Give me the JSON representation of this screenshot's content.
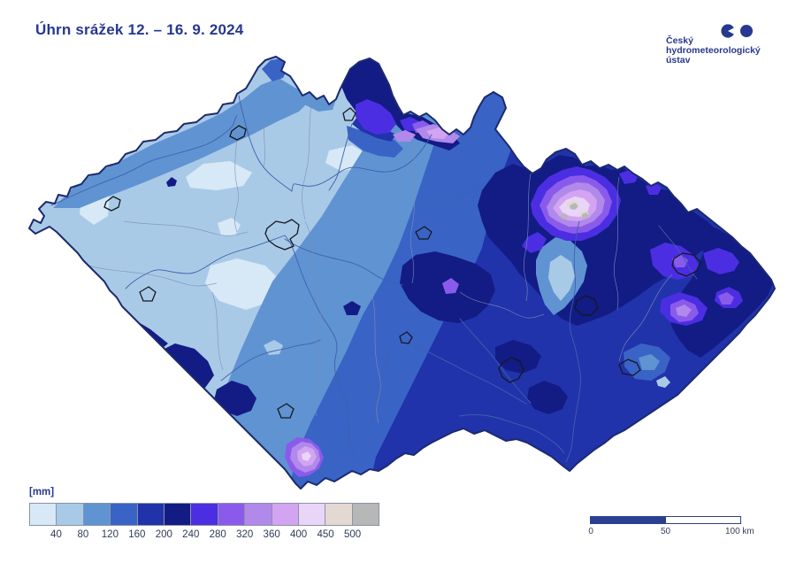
{
  "title": "Úhrn srážek 12. – 16. 9. 2024",
  "logo": {
    "name_line1": "Český",
    "name_line2": "hydrometeorologický",
    "name_line3": "ústav"
  },
  "legend": {
    "unit_label": "[mm]",
    "ticks": [
      "40",
      "80",
      "120",
      "160",
      "200",
      "240",
      "280",
      "320",
      "360",
      "400",
      "450",
      "500"
    ]
  },
  "scalebar": {
    "start_label": "0",
    "mid_label": "50",
    "end_label": "100 km"
  },
  "palette": {
    "c1": "#d7e9f6",
    "c2": "#a9cae7",
    "c3": "#6093d2",
    "c4": "#3a63c6",
    "c5": "#2133aa",
    "c6": "#131b85",
    "c7": "#4b2ee2",
    "c8": "#8a5beb",
    "c9": "#b189ea",
    "c10": "#d2a4f1",
    "c11": "#e9d5f8",
    "c12": "#e3d9d2",
    "c13": "#b7b7b7"
  },
  "colors": {
    "title_text": "#27388f",
    "map_outline": "#1c2a6e",
    "river": "#3f60ae",
    "district_line": "#7d8fb5",
    "city_outline": "#15181f",
    "scalebar_fill": "#2b3f8f",
    "legend_border": "#8a93a6"
  }
}
